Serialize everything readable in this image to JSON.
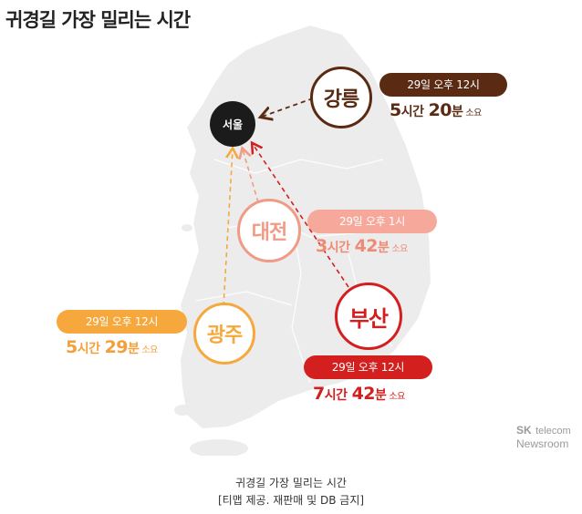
{
  "title": "귀경길 가장 밀리는 시간",
  "destination": "서울",
  "routes": [
    {
      "city": "강릉",
      "time": "29일 오후 12시",
      "hours": "5",
      "minutes": "20",
      "color": "#5a2a13"
    },
    {
      "city": "대전",
      "time": "29일 오후 1시",
      "hours": "3",
      "minutes": "42",
      "color": "#f19a85"
    },
    {
      "city": "광주",
      "time": "29일 오후 12시",
      "hours": "5",
      "minutes": "29",
      "color": "#f6a83c"
    },
    {
      "city": "부산",
      "time": "29일 오후 12시",
      "hours": "7",
      "minutes": "42",
      "color": "#d41f1f"
    }
  ],
  "units": {
    "hour": "시간",
    "minute": "분",
    "required": "소요"
  },
  "brand": {
    "sk": "SK",
    "telecom": "telecom",
    "newsroom": "Newsroom"
  },
  "caption": {
    "line1": "귀경길 가장 밀리는 시간",
    "line2": "[티맵 제공. 재판매 및 DB 금지]"
  }
}
